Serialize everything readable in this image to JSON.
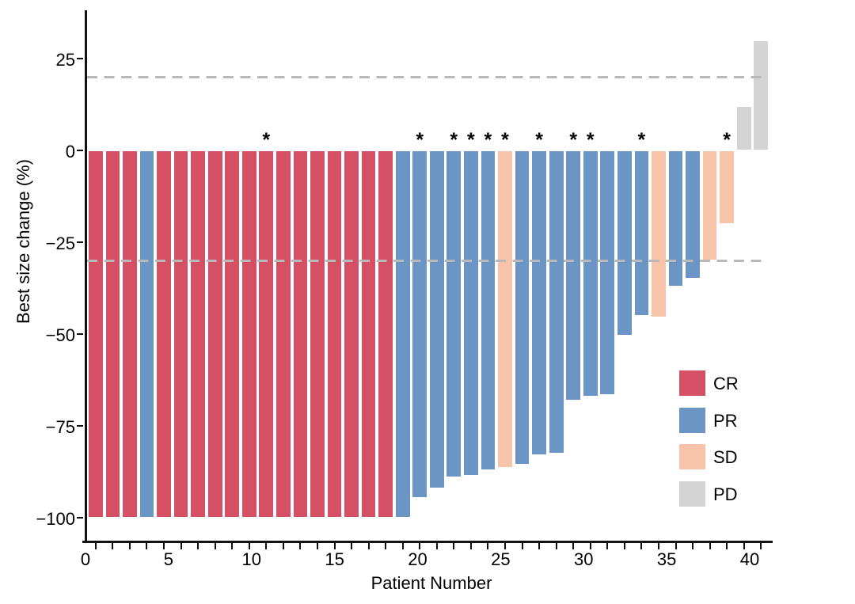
{
  "figure": {
    "background": "#ffffff",
    "text_color": "#000000"
  },
  "chart_data": {
    "type": "bar",
    "title": "",
    "xlabel": "Patient Number",
    "ylabel": "Best size change (%)",
    "x_axis": {
      "labeled_ticks": [
        0,
        5,
        10,
        15,
        20,
        25,
        30,
        35,
        40
      ],
      "minor_ticks_every": 1,
      "xlim": [
        0,
        41.5
      ]
    },
    "y_axis": {
      "ticks": [
        {
          "label": "25",
          "value": 25
        },
        {
          "label": "0",
          "value": 0
        },
        {
          "label": "−25",
          "value": -25
        },
        {
          "label": "−50",
          "value": -50
        },
        {
          "label": "−75",
          "value": -75
        },
        {
          "label": "−100",
          "value": -100
        }
      ],
      "ylim": [
        -110,
        38
      ],
      "grid": false
    },
    "reference_lines": [
      {
        "value": 20,
        "style": "dashed",
        "color": "#b9b9b9"
      },
      {
        "value": -30,
        "style": "dashed",
        "color": "#b9b9b9"
      }
    ],
    "star_symbol": "*",
    "legend": {
      "position": "bottom-right-inside",
      "entries": [
        {
          "label": "CR",
          "color": "#d55064"
        },
        {
          "label": "PR",
          "color": "#6b95c4"
        },
        {
          "label": "SD",
          "color": "#f7c3a9"
        },
        {
          "label": "PD",
          "color": "#d4d4d4"
        }
      ]
    },
    "bars": [
      {
        "patient": 1,
        "value": -100,
        "response": "CR",
        "star": false
      },
      {
        "patient": 2,
        "value": -100,
        "response": "CR",
        "star": false
      },
      {
        "patient": 3,
        "value": -100,
        "response": "CR",
        "star": false
      },
      {
        "patient": 4,
        "value": -100,
        "response": "PR",
        "star": false
      },
      {
        "patient": 5,
        "value": -100,
        "response": "CR",
        "star": false
      },
      {
        "patient": 6,
        "value": -100,
        "response": "CR",
        "star": false
      },
      {
        "patient": 7,
        "value": -100,
        "response": "CR",
        "star": false
      },
      {
        "patient": 8,
        "value": -100,
        "response": "CR",
        "star": false
      },
      {
        "patient": 9,
        "value": -100,
        "response": "CR",
        "star": false
      },
      {
        "patient": 10,
        "value": -100,
        "response": "CR",
        "star": false
      },
      {
        "patient": 11,
        "value": -100,
        "response": "CR",
        "star": true
      },
      {
        "patient": 12,
        "value": -100,
        "response": "CR",
        "star": false
      },
      {
        "patient": 13,
        "value": -100,
        "response": "CR",
        "star": false
      },
      {
        "patient": 14,
        "value": -100,
        "response": "CR",
        "star": false
      },
      {
        "patient": 15,
        "value": -100,
        "response": "CR",
        "star": false
      },
      {
        "patient": 16,
        "value": -100,
        "response": "CR",
        "star": false
      },
      {
        "patient": 17,
        "value": -100,
        "response": "CR",
        "star": false
      },
      {
        "patient": 18,
        "value": -100,
        "response": "CR",
        "star": false
      },
      {
        "patient": 19,
        "value": -100,
        "response": "PR",
        "star": false
      },
      {
        "patient": 20,
        "value": -94.5,
        "response": "PR",
        "star": true
      },
      {
        "patient": 21,
        "value": -92,
        "response": "PR",
        "star": false
      },
      {
        "patient": 22,
        "value": -89,
        "response": "PR",
        "star": true
      },
      {
        "patient": 23,
        "value": -88.5,
        "response": "PR",
        "star": true
      },
      {
        "patient": 24,
        "value": -87,
        "response": "PR",
        "star": true
      },
      {
        "patient": 25,
        "value": -86.5,
        "response": "SD",
        "star": true
      },
      {
        "patient": 26,
        "value": -85.5,
        "response": "PR",
        "star": false
      },
      {
        "patient": 27,
        "value": -83,
        "response": "PR",
        "star": true
      },
      {
        "patient": 28,
        "value": -82.5,
        "response": "PR",
        "star": false
      },
      {
        "patient": 29,
        "value": -68,
        "response": "PR",
        "star": true
      },
      {
        "patient": 30,
        "value": -67,
        "response": "PR",
        "star": true
      },
      {
        "patient": 31,
        "value": -66.5,
        "response": "PR",
        "star": false
      },
      {
        "patient": 32,
        "value": -50.5,
        "response": "PR",
        "star": false
      },
      {
        "patient": 33,
        "value": -45,
        "response": "PR",
        "star": true
      },
      {
        "patient": 34,
        "value": -45.5,
        "response": "SD",
        "star": false
      },
      {
        "patient": 35,
        "value": -37,
        "response": "PR",
        "star": false
      },
      {
        "patient": 36,
        "value": -35,
        "response": "PR",
        "star": false
      },
      {
        "patient": 37,
        "value": -30,
        "response": "SD",
        "star": false
      },
      {
        "patient": 38,
        "value": -20,
        "response": "SD",
        "star": true
      },
      {
        "patient": 39,
        "value": 12,
        "response": "PD",
        "star": false
      },
      {
        "patient": 40,
        "value": 30,
        "response": "PD",
        "star": false
      }
    ]
  }
}
